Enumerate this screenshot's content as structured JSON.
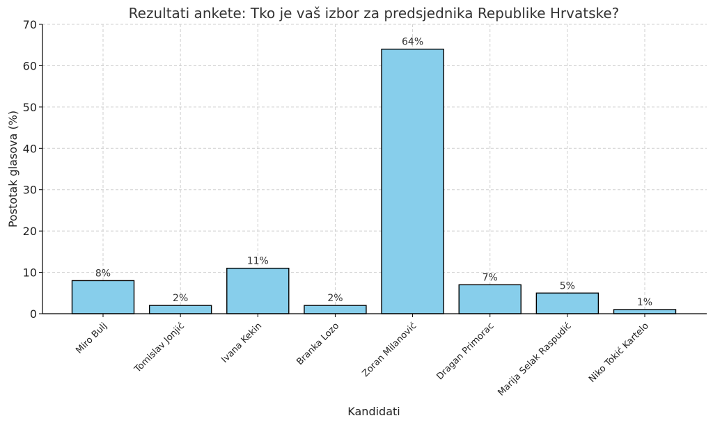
{
  "chart_data": {
    "type": "bar",
    "title": "Rezultati ankete: Tko je vaš izbor za predsjednika Republike Hrvatske?",
    "xlabel": "Kandidati",
    "ylabel": "Postotak glasova (%)",
    "categories": [
      "Miro Bulj",
      "Tomislav Jonjić",
      "Ivana Kekin",
      "Branka Lozo",
      "Zoran Milanović",
      "Dragan Primorac",
      "Marija Selak Raspudić",
      "Niko Tokić Kartelo"
    ],
    "values": [
      8,
      2,
      11,
      2,
      64,
      7,
      5,
      1
    ],
    "data_labels": [
      "8%",
      "2%",
      "11%",
      "2%",
      "64%",
      "7%",
      "5%",
      "1%"
    ],
    "ylim": [
      0,
      70
    ],
    "yticks": [
      0,
      10,
      20,
      30,
      40,
      50,
      60,
      70
    ],
    "grid": true,
    "bar_color": "#87ceeb"
  }
}
